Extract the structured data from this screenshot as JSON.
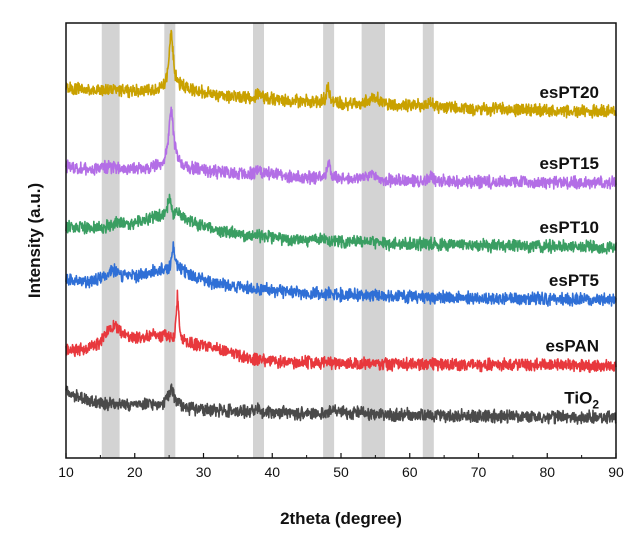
{
  "chart_data": {
    "type": "line",
    "xlabel": "2theta (degree)",
    "ylabel": "Intensity (a.u.)",
    "xlim": [
      10,
      90
    ],
    "xticks": [
      10,
      20,
      30,
      40,
      50,
      60,
      70,
      80,
      90
    ],
    "y_ticks_shown": false,
    "grid": false,
    "legend": "inline labels at right of each curve",
    "highlight_bands": [
      [
        15.2,
        17.8
      ],
      [
        24.3,
        25.9
      ],
      [
        37.2,
        38.8
      ],
      [
        47.4,
        49.0
      ],
      [
        53.0,
        56.4
      ],
      [
        61.9,
        63.5
      ]
    ],
    "highlight_color": "#d3d3d3",
    "series": [
      {
        "name": "esPT20",
        "label_main": "esPT20",
        "label_sub": "",
        "color": "#c9a100",
        "offset": 88,
        "x": [
          10,
          14,
          17,
          19,
          21,
          23,
          24.3,
          24.8,
          25.3,
          25.8,
          26.5,
          28,
          31,
          35,
          37.3,
          38,
          38.8,
          41,
          44,
          47,
          47.7,
          48.1,
          48.6,
          50,
          53,
          54,
          54.8,
          55.7,
          57,
          60,
          62.3,
          63,
          64,
          70,
          80,
          90
        ],
        "y": [
          12.5,
          11.5,
          12.0,
          11.5,
          11.5,
          12.0,
          13.0,
          17.0,
          30.0,
          17.0,
          13.5,
          12.0,
          10.5,
          9.5,
          9.5,
          11.0,
          9.5,
          8.5,
          8.5,
          8.0,
          9.0,
          13.0,
          8.5,
          7.5,
          7.5,
          8.5,
          10.0,
          8.0,
          7.0,
          7.0,
          7.0,
          8.5,
          6.5,
          6.0,
          5.5,
          5.0
        ]
      },
      {
        "name": "esPT15",
        "label_main": "esPT15",
        "label_sub": "",
        "color": "#b36ee6",
        "offset": 71,
        "x": [
          10,
          14,
          16.5,
          19,
          22,
          24.3,
          24.8,
          25.3,
          25.8,
          26.5,
          28,
          31,
          35,
          37.5,
          38,
          38.6,
          42,
          46,
          47.8,
          48.2,
          48.7,
          52,
          54.7,
          55.5,
          58,
          62.5,
          63,
          64,
          70,
          80,
          90
        ],
        "y": [
          5.5,
          4.5,
          5.5,
          4.5,
          5.0,
          7.0,
          12.0,
          24.0,
          12.0,
          7.0,
          5.0,
          4.0,
          3.5,
          3.5,
          5.0,
          3.5,
          2.5,
          2.0,
          3.0,
          6.5,
          2.5,
          1.5,
          3.5,
          1.5,
          1.0,
          1.0,
          2.5,
          1.0,
          0.8,
          0.5,
          0.5
        ]
      },
      {
        "name": "esPT10",
        "label_main": "esPT10",
        "label_sub": "",
        "color": "#3a9e62",
        "offset": 52,
        "x": [
          10,
          13,
          15,
          17,
          20,
          23,
          24.5,
          25,
          25.5,
          26.3,
          27,
          29,
          32,
          36,
          38,
          40,
          45,
          48,
          50,
          54.5,
          55.5,
          60,
          70,
          80,
          90
        ],
        "y": [
          6.0,
          5.5,
          6.0,
          7.0,
          7.5,
          9.0,
          10.0,
          15.0,
          10.5,
          11.0,
          9.0,
          7.0,
          5.0,
          3.5,
          3.5,
          3.0,
          2.0,
          2.5,
          1.5,
          2.0,
          1.0,
          1.0,
          0.5,
          0.2,
          0.0
        ]
      },
      {
        "name": "esPT5",
        "label_main": "esPT5",
        "label_sub": "",
        "color": "#2f6fd6",
        "offset": 36,
        "x": [
          10,
          13,
          15,
          16.8,
          18,
          20,
          23,
          25,
          25.6,
          26.2,
          27,
          29,
          32,
          36,
          40,
          45,
          50,
          55,
          60,
          70,
          80,
          90
        ],
        "y": [
          6.0,
          5.5,
          6.5,
          9.0,
          7.5,
          7.0,
          9.0,
          9.5,
          15.5,
          10.0,
          9.0,
          6.5,
          5.0,
          3.5,
          3.0,
          2.0,
          1.5,
          1.5,
          1.0,
          0.5,
          0.2,
          0.0
        ]
      },
      {
        "name": "esPAN",
        "label_main": "esPAN",
        "label_sub": "",
        "color": "#e8383d",
        "offset": 16,
        "x": [
          10,
          13,
          15,
          16,
          17,
          18,
          19.5,
          21,
          23,
          25,
          25.8,
          26.2,
          26.7,
          28,
          31,
          34,
          36,
          39,
          45,
          50,
          55,
          60,
          70,
          80,
          90
        ],
        "y": [
          4.5,
          5.0,
          7.0,
          10.5,
          12.5,
          10.0,
          8.5,
          8.5,
          9.5,
          9.0,
          8.0,
          21.0,
          8.0,
          7.0,
          6.0,
          4.0,
          2.5,
          1.5,
          1.0,
          0.8,
          0.6,
          0.5,
          0.3,
          0.2,
          0.0
        ]
      },
      {
        "name": "TiO2",
        "label_main": "TiO",
        "label_sub": "2",
        "color": "#4a4a4a",
        "offset": 0,
        "x": [
          10,
          11,
          13,
          16,
          20,
          24,
          24.8,
          25.3,
          25.8,
          26.5,
          28,
          32,
          37.5,
          38,
          38.5,
          45,
          48,
          48.5,
          55,
          62.5,
          70,
          80,
          90
        ],
        "y": [
          9.5,
          7.0,
          5.5,
          4.5,
          4.0,
          4.5,
          6.5,
          9.0,
          6.5,
          4.5,
          3.0,
          2.5,
          2.0,
          3.0,
          2.0,
          1.5,
          1.5,
          2.3,
          1.2,
          1.0,
          0.7,
          0.4,
          0.3
        ]
      }
    ]
  }
}
